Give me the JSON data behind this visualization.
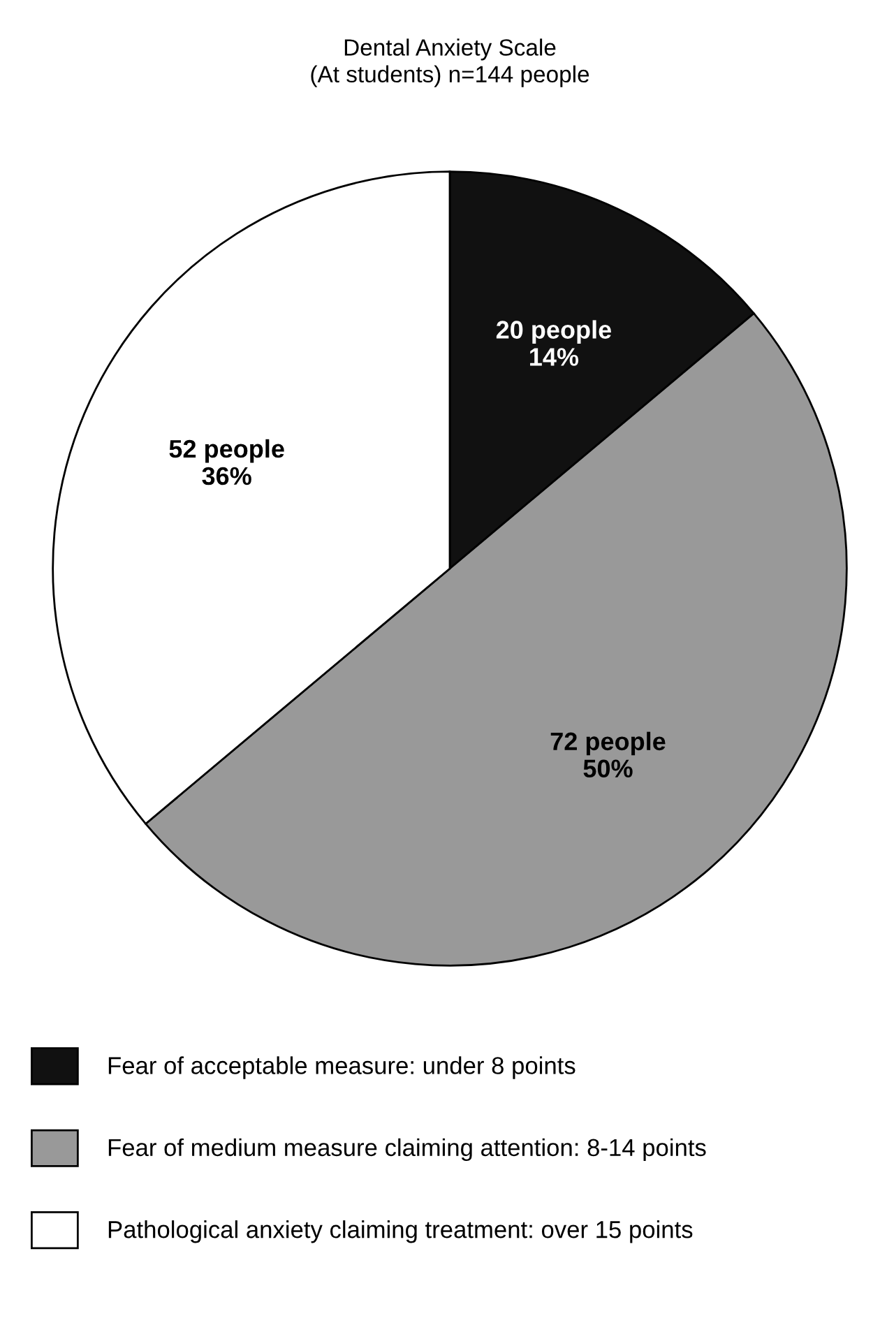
{
  "chart_data": {
    "type": "pie",
    "title": "Dental Anxiety Scale\n(At students) n=144 people",
    "categories": [
      "Fear of acceptable measure: under 8 points",
      "Fear of medium measure claiming attention: 8-14 points",
      "Pathological anxiety claiming treatment: over 15 points"
    ],
    "values": [
      20,
      72,
      52
    ],
    "colors": [
      "#111111",
      "#999999",
      "#ffffff"
    ],
    "value_labels": [
      "20 people\n14%",
      "72 people\n50%",
      "52 people\n36%"
    ],
    "legend": "bottom"
  }
}
